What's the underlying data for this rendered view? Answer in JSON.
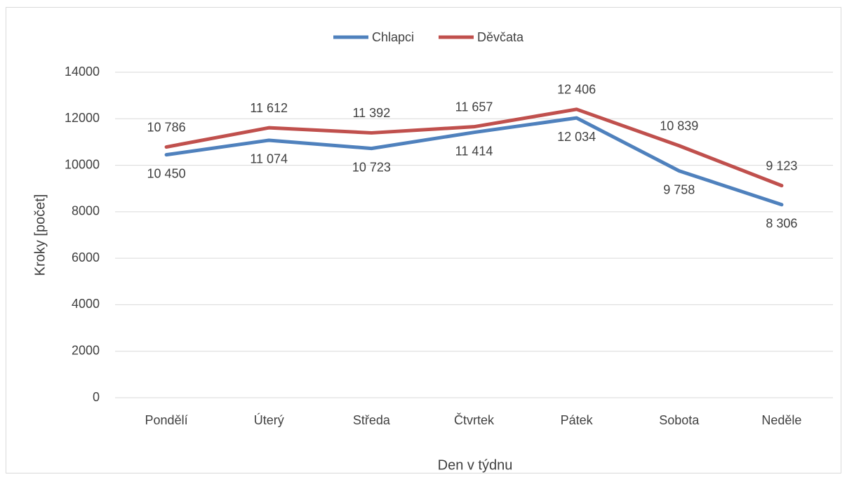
{
  "chart_data": {
    "type": "line",
    "x_label": "Den v týdnu",
    "y_label": "Kroky [počet]",
    "categories": [
      "Pondělí",
      "Úterý",
      "Středa",
      "Čtvrtek",
      "Pátek",
      "Sobota",
      "Neděle"
    ],
    "series": [
      {
        "name": "Chlapci",
        "color": "#4f81bd",
        "values": [
          10450,
          11074,
          10723,
          11414,
          12034,
          9758,
          8306
        ],
        "value_labels": [
          "10 450",
          "11 074",
          "10 723",
          "11 414",
          "12 034",
          "9 758",
          "8 306"
        ]
      },
      {
        "name": "Děvčata",
        "color": "#c0504d",
        "values": [
          10786,
          11612,
          11392,
          11657,
          12406,
          10839,
          9123
        ],
        "value_labels": [
          "10 786",
          "11 612",
          "11 392",
          "11 657",
          "12 406",
          "10 839",
          "9 123"
        ]
      }
    ],
    "ylim": [
      0,
      14000
    ],
    "yticks": [
      0,
      2000,
      4000,
      6000,
      8000,
      10000,
      12000,
      14000
    ],
    "grid": true,
    "legend": "top"
  }
}
